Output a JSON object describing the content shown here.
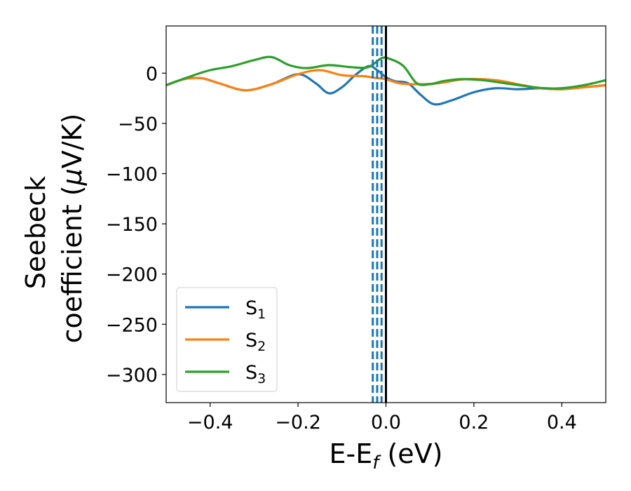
{
  "chart_data": {
    "type": "line",
    "title": "",
    "xlabel": {
      "main": "E-E",
      "sub": "f",
      "suffix": " (eV)"
    },
    "ylabel": {
      "line1": "Seebeck",
      "line2_text": "coefficient  (",
      "line2_mu": "μ",
      "line2_unit": "V/K)"
    },
    "xlim": [
      -0.5,
      0.5
    ],
    "ylim": [
      -328,
      47
    ],
    "xticks": [
      -0.4,
      -0.2,
      0.0,
      0.2,
      0.4
    ],
    "xtick_labels": [
      "−0.4",
      "−0.2",
      "0.0",
      "0.2",
      "0.4"
    ],
    "yticks": [
      0,
      -50,
      -100,
      -150,
      -200,
      -250,
      -300
    ],
    "ytick_labels": [
      "0",
      "−50",
      "−100",
      "−150",
      "−200",
      "−250",
      "−300"
    ],
    "legend_position": "lower-left",
    "series": [
      {
        "name": "S",
        "sub": "1",
        "color": "#1f77b4",
        "x": [
          -0.5,
          -0.46,
          -0.42,
          -0.38,
          -0.32,
          -0.26,
          -0.2,
          -0.16,
          -0.13,
          -0.1,
          -0.07,
          -0.04,
          -0.02,
          0.0,
          0.02,
          0.05,
          0.08,
          0.11,
          0.15,
          0.2,
          0.25,
          0.3,
          0.35,
          0.4,
          0.45,
          0.5
        ],
        "y": [
          -12,
          -6,
          -5,
          -10,
          -17,
          -11,
          -1,
          -10,
          -20,
          -14,
          -2,
          7,
          3,
          -4,
          -8,
          -10,
          -22,
          -31,
          -27,
          -19,
          -15,
          -16,
          -15,
          -16,
          -14,
          -12
        ]
      },
      {
        "name": "S",
        "sub": "2",
        "color": "#ff7f0e",
        "x": [
          -0.5,
          -0.46,
          -0.42,
          -0.38,
          -0.32,
          -0.26,
          -0.2,
          -0.15,
          -0.1,
          -0.05,
          -0.02,
          0.0,
          0.03,
          0.07,
          0.12,
          0.18,
          0.25,
          0.3,
          0.35,
          0.4,
          0.45,
          0.5
        ],
        "y": [
          -12,
          -6,
          -5,
          -10,
          -17,
          -11,
          -1,
          3,
          -2,
          -3,
          -5,
          -6,
          -10,
          -11,
          -10,
          -6,
          -7,
          -11,
          -15,
          -16,
          -14,
          -12
        ]
      },
      {
        "name": "S",
        "sub": "3",
        "color": "#2ca02c",
        "x": [
          -0.5,
          -0.45,
          -0.4,
          -0.35,
          -0.3,
          -0.26,
          -0.22,
          -0.18,
          -0.13,
          -0.08,
          -0.04,
          -0.01,
          0.01,
          0.04,
          0.07,
          0.1,
          0.13,
          0.17,
          0.22,
          0.27,
          0.32,
          0.36,
          0.4,
          0.45,
          0.5
        ],
        "y": [
          -12,
          -4,
          3,
          7,
          13,
          16,
          8,
          5,
          8,
          6,
          6,
          15,
          14,
          7,
          -10,
          -11,
          -8,
          -6,
          -7,
          -10,
          -13,
          -15,
          -15,
          -12,
          -7
        ]
      }
    ],
    "vlines": [
      {
        "x": -0.03,
        "style": "dashed",
        "color": "#1f77b4"
      },
      {
        "x": -0.02,
        "style": "dashed",
        "color": "#1f77b4"
      },
      {
        "x": -0.01,
        "style": "dashed",
        "color": "#1f77b4"
      },
      {
        "x": 0.0,
        "style": "solid",
        "color": "#000000"
      }
    ]
  }
}
